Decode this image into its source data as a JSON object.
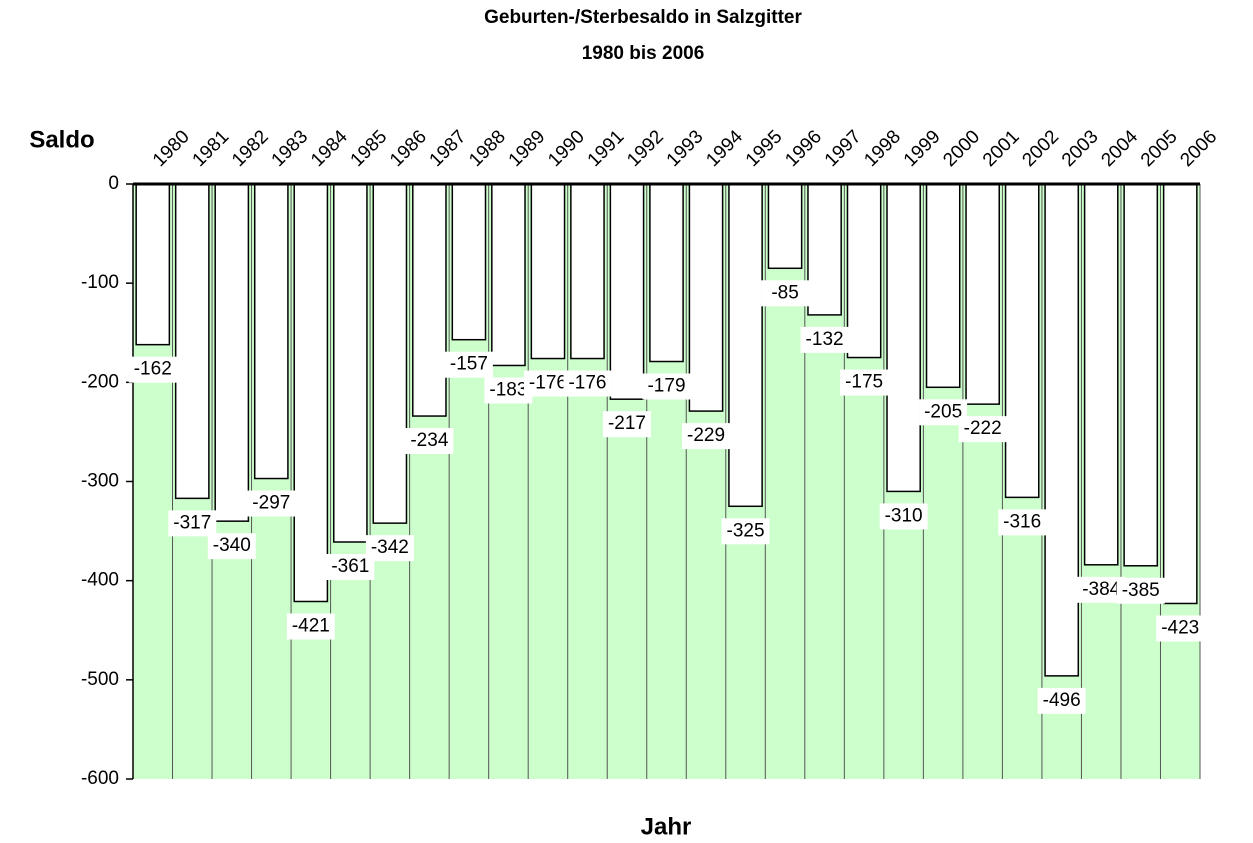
{
  "chart_data": {
    "type": "bar",
    "title": "Geburten-/Sterbesaldo in Salzgitter",
    "subtitle": "1980 bis 2006",
    "x_label": "Jahr",
    "y_label": "Saldo",
    "categories": [
      "1980",
      "1981",
      "1982",
      "1983",
      "1984",
      "1985",
      "1986",
      "1987",
      "1988",
      "1989",
      "1990",
      "1991",
      "1992",
      "1993",
      "1994",
      "1995",
      "1996",
      "1997",
      "1998",
      "1999",
      "2000",
      "2001",
      "2002",
      "2003",
      "2004",
      "2005",
      "2006"
    ],
    "values": [
      -162,
      -317,
      -340,
      -297,
      -421,
      -361,
      -342,
      -234,
      -157,
      -183,
      -176,
      -176,
      -217,
      -179,
      -229,
      -325,
      -85,
      -132,
      -175,
      -310,
      -205,
      -222,
      -316,
      -496,
      -384,
      -385,
      -423
    ],
    "color": "#ffffff",
    "background": "#ccffcc",
    "ylim": [
      -600,
      0
    ],
    "yticks": [
      0,
      -100,
      -200,
      -300,
      -400,
      -500,
      -600
    ]
  }
}
